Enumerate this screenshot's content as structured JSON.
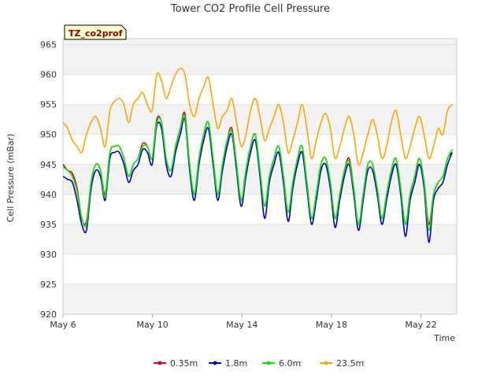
{
  "chart_data": {
    "type": "line",
    "title": "Tower CO2 Profile Cell Pressure",
    "xlabel": "Time",
    "ylabel": "Cell Pressure (mBar)",
    "tag": "TZ_co2prof",
    "x_start_day": 6,
    "x_end_day": 23.4,
    "xlim": [
      6,
      23.6
    ],
    "ylim": [
      920,
      966
    ],
    "x_ticks": [
      {
        "day": 6,
        "label": "May 6"
      },
      {
        "day": 10,
        "label": "May 10"
      },
      {
        "day": 14,
        "label": "May 14"
      },
      {
        "day": 18,
        "label": "May 18"
      },
      {
        "day": 22,
        "label": "May 22"
      }
    ],
    "y_ticks": [
      920,
      925,
      930,
      935,
      940,
      945,
      950,
      955,
      960,
      965
    ],
    "grid": true,
    "legend_position": "bottom",
    "series": [
      {
        "name": "0.35m",
        "color": "#e8000b",
        "values": [
          945,
          944,
          943.5,
          941,
          936,
          935.5,
          942,
          945,
          944,
          940,
          947,
          948,
          948,
          946,
          943,
          945,
          946,
          948.5,
          948,
          946,
          952.5,
          952,
          946,
          944,
          948,
          951,
          953.5,
          945,
          940,
          946,
          950,
          952,
          946,
          940,
          945,
          949,
          951,
          945,
          939,
          944,
          948,
          950,
          944,
          938,
          943,
          946,
          948,
          943,
          937,
          942,
          946,
          948,
          942,
          936,
          940,
          945,
          946,
          942,
          936,
          940,
          944,
          946,
          941,
          935,
          940,
          945,
          945,
          941,
          936,
          940,
          944,
          946,
          941,
          935,
          940,
          943,
          946,
          942,
          935,
          940,
          942,
          943,
          946,
          947
        ]
      },
      {
        "name": "1.8m",
        "color": "#0000cc",
        "values": [
          943,
          942.5,
          942,
          939,
          935,
          934,
          941,
          944,
          943,
          939,
          946,
          947,
          947,
          945,
          942,
          944,
          945,
          947.5,
          947,
          945,
          951.5,
          951,
          945,
          943,
          947,
          950,
          952.5,
          944,
          939,
          945,
          949,
          951,
          945,
          939,
          944,
          948,
          950,
          944,
          938,
          943,
          947,
          949,
          943,
          936,
          942,
          945,
          947,
          942,
          935.5,
          941,
          945,
          947,
          941,
          935,
          939,
          944,
          945,
          941,
          934.5,
          939,
          943,
          945,
          940,
          934,
          939,
          944,
          944,
          940,
          935,
          939,
          943,
          945,
          940,
          933,
          939,
          942,
          945,
          941,
          932,
          939,
          941,
          942,
          945,
          947
        ]
      },
      {
        "name": "6.0m",
        "color": "#00ee00",
        "values": [
          944.5,
          944,
          943,
          940.5,
          936,
          935,
          942,
          945,
          944,
          939.5,
          947,
          948,
          948,
          946,
          943,
          945,
          946,
          948,
          948,
          946,
          952,
          952,
          946,
          944,
          948,
          951,
          953,
          945,
          940,
          946,
          950,
          952,
          946,
          940,
          945,
          949,
          950.5,
          945,
          939,
          944,
          948,
          950,
          944,
          938,
          943,
          946,
          948,
          943,
          937,
          942,
          946,
          948,
          942,
          936,
          940,
          945,
          946,
          942,
          936,
          940,
          944,
          945.5,
          941,
          935,
          940,
          945,
          945,
          941,
          936,
          940,
          944,
          946,
          941,
          935,
          940,
          943,
          946,
          942,
          934,
          940,
          942,
          943,
          946,
          947.5
        ]
      },
      {
        "name": "23.5m",
        "color": "#ffa500",
        "values": [
          952,
          951,
          949,
          948,
          947,
          950,
          952,
          953,
          951,
          948,
          954,
          955.5,
          956,
          955,
          952,
          955,
          956,
          957,
          955,
          954,
          960,
          959,
          956,
          958,
          960,
          961,
          960,
          955,
          953,
          956,
          958,
          959.5,
          955,
          951,
          953,
          954,
          956,
          952,
          948,
          950,
          954,
          956,
          953,
          949,
          951,
          953,
          955,
          952,
          947,
          949,
          952,
          955,
          951,
          946,
          949,
          952,
          953.5,
          951,
          946,
          948,
          951,
          953,
          950,
          945,
          947,
          950,
          952.5,
          950,
          946,
          948,
          952,
          954,
          950,
          946,
          948,
          951,
          953,
          950,
          946,
          948,
          951,
          950,
          954,
          955
        ]
      }
    ]
  }
}
